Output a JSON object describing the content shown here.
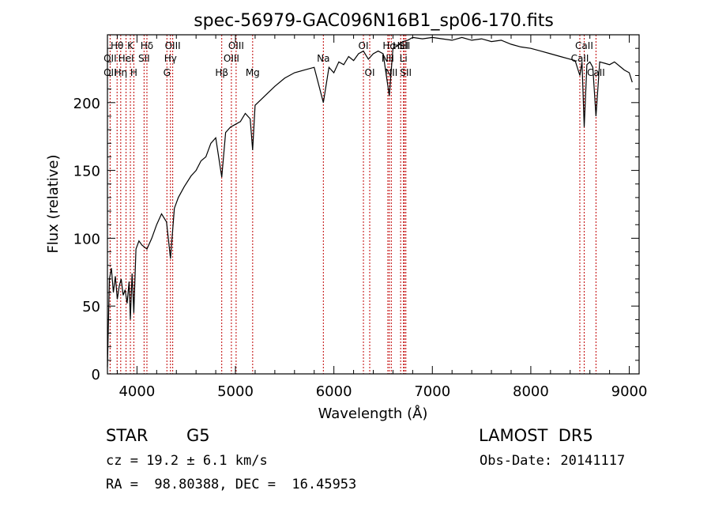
{
  "chart_data": {
    "type": "line",
    "title": "spec-56979-GAC096N16B1_sp06-170.fits",
    "xlabel": "Wavelength (Å)",
    "ylabel": "Flux (relative)",
    "xlim": [
      3700,
      9100
    ],
    "ylim": [
      0,
      250
    ],
    "x_ticks": [
      4000,
      5000,
      6000,
      7000,
      8000,
      9000
    ],
    "y_ticks": [
      0,
      50,
      100,
      150,
      200
    ],
    "grid": false,
    "legend": "none",
    "line_color": "#000000",
    "marker_color": "#c00000",
    "series": [
      {
        "x": [
          3700,
          3720,
          3740,
          3760,
          3780,
          3800,
          3820,
          3840,
          3860,
          3880,
          3900,
          3920,
          3933,
          3950,
          3968,
          3990,
          4020,
          4050,
          4101,
          4150,
          4200,
          4250,
          4300,
          4340,
          4380,
          4420,
          4480,
          4550,
          4600,
          4650,
          4700,
          4750,
          4800,
          4861,
          4900,
          4950,
          5000,
          5050,
          5100,
          5150,
          5175,
          5200,
          5300,
          5400,
          5500,
          5600,
          5700,
          5800,
          5893,
          5950,
          6000,
          6050,
          6100,
          6150,
          6200,
          6250,
          6300,
          6350,
          6400,
          6450,
          6500,
          6563,
          6600,
          6650,
          6700,
          6750,
          6800,
          6900,
          7000,
          7100,
          7200,
          7300,
          7400,
          7500,
          7600,
          7700,
          7800,
          7900,
          8000,
          8100,
          8200,
          8300,
          8400,
          8450,
          8498,
          8520,
          8542,
          8570,
          8600,
          8630,
          8662,
          8700,
          8750,
          8800,
          8850,
          8900,
          8950,
          9000,
          9030
        ],
        "y": [
          5,
          70,
          78,
          60,
          72,
          55,
          65,
          70,
          58,
          62,
          52,
          68,
          40,
          74,
          45,
          92,
          98,
          95,
          92,
          100,
          110,
          118,
          112,
          85,
          122,
          130,
          138,
          146,
          150,
          157,
          160,
          170,
          174,
          145,
          178,
          182,
          184,
          186,
          192,
          188,
          165,
          198,
          205,
          212,
          218,
          222,
          224,
          226,
          200,
          226,
          222,
          230,
          228,
          234,
          231,
          236,
          238,
          232,
          236,
          238,
          236,
          205,
          240,
          242,
          245,
          246,
          248,
          247,
          248,
          247,
          246,
          248,
          246,
          247,
          245,
          246,
          243,
          241,
          240,
          238,
          236,
          234,
          232,
          231,
          220,
          230,
          182,
          228,
          230,
          226,
          190,
          230,
          229,
          228,
          230,
          227,
          224,
          222,
          215
        ]
      }
    ],
    "lines": [
      {
        "x": 3727,
        "top": "",
        "mid": "OII",
        "bottom": "OII"
      },
      {
        "x": 3798,
        "top": "Hθ",
        "mid": "",
        "bottom": ""
      },
      {
        "x": 3835,
        "top": "",
        "mid": "",
        "bottom": "Hη"
      },
      {
        "x": 3889,
        "top": "",
        "mid": "HeI",
        "bottom": ""
      },
      {
        "x": 3933,
        "top": "K",
        "mid": "",
        "bottom": ""
      },
      {
        "x": 3968,
        "top": "",
        "mid": "",
        "bottom": "H"
      },
      {
        "x": 4072,
        "top": "",
        "mid": "SII",
        "bottom": ""
      },
      {
        "x": 4101,
        "top": "Hδ",
        "mid": "",
        "bottom": ""
      },
      {
        "x": 4304,
        "top": "",
        "mid": "",
        "bottom": "G"
      },
      {
        "x": 4340,
        "top": "",
        "mid": "Hγ",
        "bottom": ""
      },
      {
        "x": 4363,
        "top": "OIII",
        "mid": "",
        "bottom": ""
      },
      {
        "x": 4861,
        "top": "",
        "mid": "",
        "bottom": "Hβ"
      },
      {
        "x": 4959,
        "top": "",
        "mid": "OIII",
        "bottom": ""
      },
      {
        "x": 5007,
        "top": "OIII",
        "mid": "",
        "bottom": ""
      },
      {
        "x": 5175,
        "top": "",
        "mid": "",
        "bottom": "Mg"
      },
      {
        "x": 5893,
        "top": "",
        "mid": "Na",
        "bottom": ""
      },
      {
        "x": 6300,
        "top": "OI",
        "mid": "",
        "bottom": ""
      },
      {
        "x": 6364,
        "top": "",
        "mid": "",
        "bottom": "OI"
      },
      {
        "x": 6548,
        "top": "",
        "mid": "NII",
        "bottom": ""
      },
      {
        "x": 6563,
        "top": "Hα",
        "mid": "",
        "bottom": ""
      },
      {
        "x": 6583,
        "top": "",
        "mid": "",
        "bottom": "NII"
      },
      {
        "x": 6678,
        "top": "HeI",
        "mid": "",
        "bottom": ""
      },
      {
        "x": 6707,
        "top": "",
        "mid": "Li",
        "bottom": ""
      },
      {
        "x": 6716,
        "top": "SII",
        "mid": "",
        "bottom": ""
      },
      {
        "x": 6731,
        "top": "",
        "mid": "",
        "bottom": "SII"
      },
      {
        "x": 8498,
        "top": "",
        "mid": "CaII",
        "bottom": ""
      },
      {
        "x": 8542,
        "top": "CaII",
        "mid": "",
        "bottom": ""
      },
      {
        "x": 8662,
        "top": "",
        "mid": "",
        "bottom": "CaII"
      }
    ]
  },
  "info": {
    "object_class": "STAR",
    "subclass": "G5",
    "survey": "LAMOST  DR5",
    "cz": "cz = 19.2 ± 6.1 km/s",
    "obs_date": "Obs-Date: 20141117",
    "coords": "RA =  98.80388, DEC =  16.45953"
  }
}
